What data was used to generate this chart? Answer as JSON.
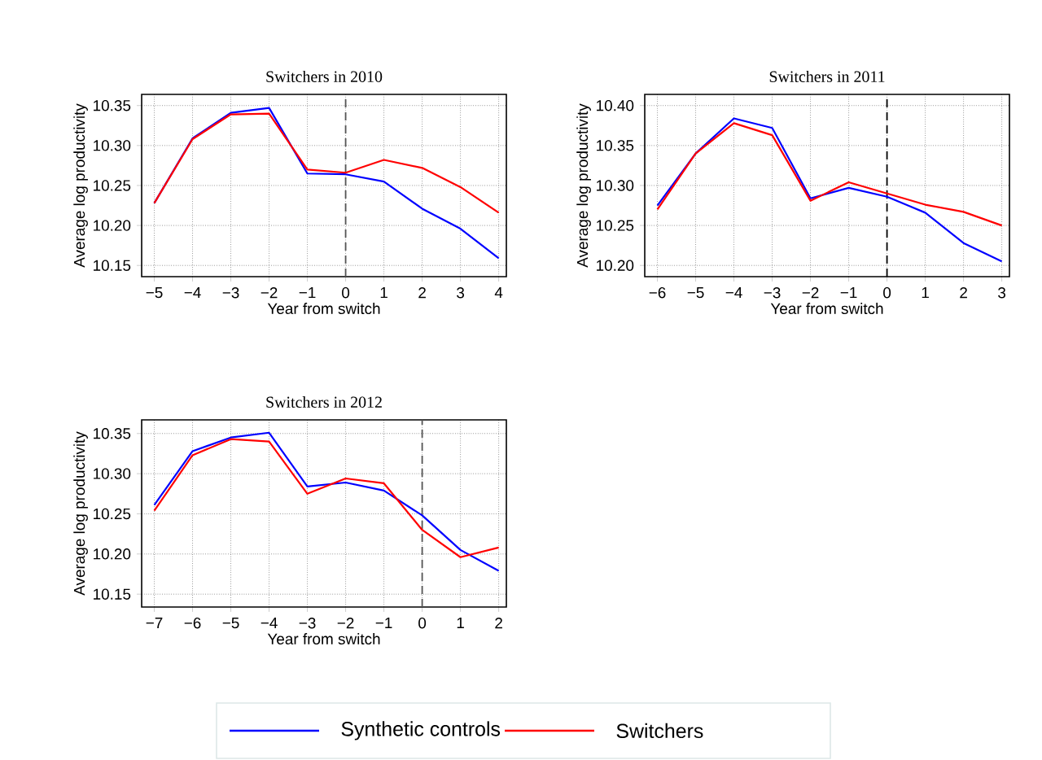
{
  "chart_data": [
    {
      "type": "line",
      "title": "Switchers in 2010",
      "xlabel": "Year from switch",
      "ylabel": "Average log productivity",
      "x": [
        -5,
        -4,
        -3,
        -2,
        -1,
        0,
        1,
        2,
        3,
        4
      ],
      "xlim": [
        -5.33,
        4.2
      ],
      "ylim": [
        10.136,
        10.364
      ],
      "xticks": [
        {
          "value": -5,
          "label": "−5"
        },
        {
          "value": -4,
          "label": "−4"
        },
        {
          "value": -3,
          "label": "−3"
        },
        {
          "value": -2,
          "label": "−2"
        },
        {
          "value": -1,
          "label": "−1"
        },
        0,
        1,
        2,
        3,
        4
      ],
      "yticks": [
        {
          "value": 10.15,
          "label": "10.15"
        },
        {
          "value": 10.2,
          "label": "10.20"
        },
        {
          "value": 10.25,
          "label": "10.25"
        },
        {
          "value": 10.3,
          "label": "10.30"
        },
        {
          "value": 10.35,
          "label": "10.35"
        }
      ],
      "grid": true,
      "marker": "none",
      "legend": "bottom",
      "ref_lines": [
        {
          "axis": "x",
          "value": 0,
          "color": "#555555",
          "line_style": "dashed"
        }
      ],
      "series": [
        {
          "name": "Synthetic controls",
          "color": "#0000ff",
          "values": [
            10.228,
            10.309,
            10.341,
            10.347,
            10.265,
            10.264,
            10.255,
            10.221,
            10.196,
            10.159
          ]
        },
        {
          "name": "Switchers",
          "color": "#ff0000",
          "values": [
            10.228,
            10.308,
            10.339,
            10.34,
            10.27,
            10.266,
            10.282,
            10.272,
            10.248,
            10.216
          ]
        }
      ]
    },
    {
      "type": "line",
      "title": "Switchers in 2011",
      "xlabel": "Year from switch",
      "ylabel": "Average log productivity",
      "x": [
        -6,
        -5,
        -4,
        -3,
        -2,
        -1,
        0,
        1,
        2,
        3
      ],
      "xlim": [
        -6.33,
        3.2
      ],
      "ylim": [
        10.186,
        10.414
      ],
      "xticks": [
        {
          "value": -6,
          "label": "−6"
        },
        {
          "value": -5,
          "label": "−5"
        },
        {
          "value": -4,
          "label": "−4"
        },
        {
          "value": -3,
          "label": "−3"
        },
        {
          "value": -2,
          "label": "−2"
        },
        {
          "value": -1,
          "label": "−1"
        },
        0,
        1,
        2,
        3
      ],
      "yticks": [
        {
          "value": 10.2,
          "label": "10.20"
        },
        {
          "value": 10.25,
          "label": "10.25"
        },
        {
          "value": 10.3,
          "label": "10.30"
        },
        {
          "value": 10.35,
          "label": "10.35"
        },
        {
          "value": 10.4,
          "label": "10.40"
        }
      ],
      "grid": true,
      "marker": "none",
      "ref_lines": [
        {
          "axis": "x",
          "value": 0,
          "color": "#000000",
          "line_style": "dashed"
        }
      ],
      "series": [
        {
          "color": "#0000ff",
          "values": [
            10.275,
            10.34,
            10.384,
            10.372,
            10.284,
            10.297,
            10.286,
            10.266,
            10.228,
            10.205
          ]
        },
        {
          "color": "#ff0000",
          "values": [
            10.27,
            10.34,
            10.378,
            10.363,
            10.281,
            10.304,
            10.29,
            10.276,
            10.267,
            10.25
          ]
        }
      ]
    },
    {
      "type": "line",
      "title": "Switchers in 2012",
      "xlabel": "Year from switch",
      "ylabel": "Average log productivity",
      "x": [
        -7,
        -6,
        -5,
        -4,
        -3,
        -2,
        -1,
        0,
        1,
        2
      ],
      "xlim": [
        -7.33,
        2.2
      ],
      "ylim": [
        10.134,
        10.367
      ],
      "xticks": [
        {
          "value": -7,
          "label": "−7"
        },
        {
          "value": -6,
          "label": "−6"
        },
        {
          "value": -5,
          "label": "−5"
        },
        {
          "value": -4,
          "label": "−4"
        },
        {
          "value": -3,
          "label": "−3"
        },
        {
          "value": -2,
          "label": "−2"
        },
        {
          "value": -1,
          "label": "−1"
        },
        0,
        1,
        2
      ],
      "yticks": [
        {
          "value": 10.15,
          "label": "10.15"
        },
        {
          "value": 10.2,
          "label": "10.20"
        },
        {
          "value": 10.25,
          "label": "10.25"
        },
        {
          "value": 10.3,
          "label": "10.30"
        },
        {
          "value": 10.35,
          "label": "10.35"
        }
      ],
      "grid": true,
      "marker": "none",
      "ref_lines": [
        {
          "axis": "x",
          "value": 0,
          "color": "#555555",
          "line_style": "dashed"
        }
      ],
      "series": [
        {
          "color": "#0000ff",
          "values": [
            10.261,
            10.328,
            10.345,
            10.351,
            10.284,
            10.289,
            10.279,
            10.248,
            10.205,
            10.179
          ]
        },
        {
          "color": "#ff0000",
          "values": [
            10.254,
            10.323,
            10.343,
            10.34,
            10.275,
            10.294,
            10.288,
            10.23,
            10.196,
            10.208
          ]
        }
      ]
    }
  ]
}
